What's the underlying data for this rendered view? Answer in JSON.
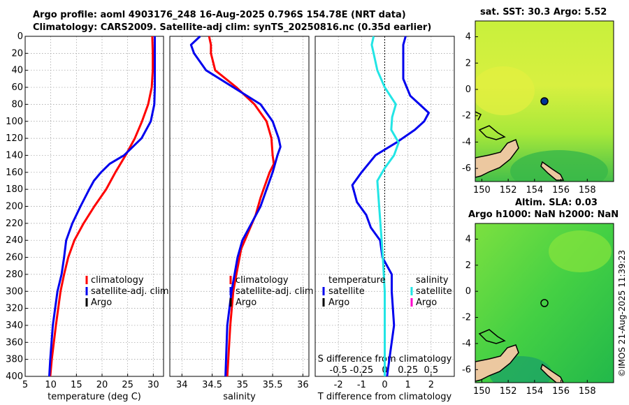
{
  "header": {
    "line1": "Argo profile: aoml 4903176_248 16-Aug-2025 0.796S 154.78E (NRT data)",
    "line2": "Climatology: CARS2009. Satellite-adj clim: synTS_20250816.nc (0.35d earlier)"
  },
  "map_titles": {
    "sst": "sat. SST: 30.3 Argo: 5.52",
    "sla1": "Altim. SLA: 0.03",
    "sla2": "Argo h1000: NaN h2000: NaN"
  },
  "side_label": "©IMOS 21-Aug-2025 11:39:23",
  "legend": {
    "climatology": "climatology",
    "satellite_adj": "satellite-adj. clim",
    "argo": "Argo",
    "temperature": "temperature",
    "salinity": "salinity",
    "satellite": "satellite"
  },
  "colors": {
    "climatology": "#ff0000",
    "satellite": "#0000ee",
    "salinity_sat": "#22e5e5",
    "argo": "#000000",
    "argo_sal": "#ff00cc",
    "grid": "#999999"
  },
  "chart_data": [
    {
      "type": "line",
      "id": "temperature",
      "xlabel": "temperature (deg C)",
      "ylabel": "",
      "xlim": [
        5,
        32
      ],
      "ylim": [
        400,
        0
      ],
      "xticks": [
        5,
        10,
        15,
        20,
        25,
        30
      ],
      "yticks": [
        0,
        20,
        40,
        60,
        80,
        100,
        120,
        140,
        160,
        180,
        200,
        220,
        240,
        260,
        280,
        300,
        320,
        340,
        360,
        380,
        400
      ],
      "series": [
        {
          "name": "climatology",
          "depth": [
            0,
            20,
            40,
            60,
            80,
            100,
            120,
            140,
            160,
            180,
            200,
            220,
            240,
            260,
            280,
            300,
            340,
            380,
            400
          ],
          "values": [
            29.8,
            29.9,
            29.9,
            29.7,
            29.0,
            27.8,
            26.4,
            24.6,
            22.6,
            20.8,
            18.5,
            16.4,
            14.6,
            13.4,
            12.6,
            11.9,
            11.0,
            10.2,
            9.9
          ]
        },
        {
          "name": "satellite-adj. clim",
          "depth": [
            0,
            20,
            40,
            60,
            80,
            100,
            120,
            140,
            150,
            160,
            170,
            180,
            200,
            220,
            240,
            260,
            280,
            300,
            340,
            380,
            400
          ],
          "values": [
            30.3,
            30.3,
            30.3,
            30.3,
            30.2,
            29.5,
            27.7,
            24.3,
            21.5,
            19.8,
            18.4,
            17.5,
            15.8,
            14.2,
            13.0,
            12.6,
            12.1,
            11.3,
            10.4,
            9.9,
            9.7
          ]
        }
      ]
    },
    {
      "type": "line",
      "id": "salinity",
      "xlabel": "salinity",
      "xlim": [
        33.8,
        36.1
      ],
      "ylim": [
        400,
        0
      ],
      "xticks": [
        34,
        34.5,
        35,
        35.5,
        36
      ],
      "series": [
        {
          "name": "climatology",
          "depth": [
            0,
            10,
            20,
            40,
            60,
            80,
            100,
            120,
            140,
            150,
            160,
            170,
            190,
            210,
            230,
            250,
            280,
            300,
            340,
            400
          ],
          "values": [
            34.45,
            34.48,
            34.48,
            34.55,
            34.9,
            35.2,
            35.4,
            35.48,
            35.5,
            35.52,
            35.45,
            35.4,
            35.3,
            35.22,
            35.1,
            34.98,
            34.9,
            34.85,
            34.8,
            34.75
          ]
        },
        {
          "name": "satellite-adj. clim",
          "depth": [
            0,
            10,
            20,
            40,
            60,
            80,
            100,
            120,
            130,
            140,
            160,
            180,
            200,
            220,
            240,
            260,
            300,
            340,
            400
          ],
          "values": [
            34.3,
            34.15,
            34.2,
            34.4,
            34.85,
            35.3,
            35.5,
            35.6,
            35.63,
            35.58,
            35.5,
            35.4,
            35.3,
            35.15,
            35.0,
            34.92,
            34.82,
            34.75,
            34.72
          ]
        }
      ]
    },
    {
      "type": "line",
      "id": "differences",
      "xlabel": "T difference from climatology",
      "xlabel_top": "S difference from climatology",
      "xlim": [
        -3,
        3
      ],
      "ylim": [
        400,
        0
      ],
      "xticks": [
        -2,
        -1,
        0,
        1,
        2
      ],
      "sticks": [
        -0.5,
        -0.25,
        0,
        0.25,
        0.5
      ],
      "series": [
        {
          "name": "temperature satellite",
          "depth": [
            0,
            10,
            30,
            50,
            70,
            80,
            90,
            100,
            110,
            125,
            140,
            160,
            175,
            185,
            195,
            210,
            225,
            240,
            260,
            280,
            300,
            340,
            380,
            400
          ],
          "values": [
            0.9,
            0.8,
            0.8,
            0.8,
            1.1,
            1.5,
            1.9,
            1.7,
            1.3,
            0.5,
            -0.4,
            -1.0,
            -1.4,
            -1.3,
            -1.2,
            -0.8,
            -0.6,
            -0.2,
            -0.1,
            0.3,
            0.3,
            0.4,
            0.2,
            0.1
          ]
        },
        {
          "name": "salinity satellite",
          "depth": [
            0,
            10,
            20,
            40,
            60,
            80,
            95,
            110,
            125,
            140,
            155,
            170,
            200,
            230,
            260,
            300,
            340,
            380,
            400
          ],
          "values": [
            -0.12,
            -0.14,
            -0.12,
            -0.08,
            0.0,
            0.12,
            0.08,
            0.07,
            0.15,
            0.1,
            0.0,
            -0.08,
            -0.06,
            -0.04,
            -0.02,
            0.0,
            0.0,
            0.0,
            0.0
          ]
        }
      ]
    }
  ],
  "maps": {
    "xlim": [
      149.5,
      160
    ],
    "ylim": [
      -7,
      5.2
    ],
    "xticks": [
      150,
      152,
      154,
      156,
      158
    ],
    "yticks": [
      -6,
      -4,
      -2,
      0,
      2,
      4
    ],
    "argo_lon": 154.78,
    "argo_lat": -0.796
  }
}
